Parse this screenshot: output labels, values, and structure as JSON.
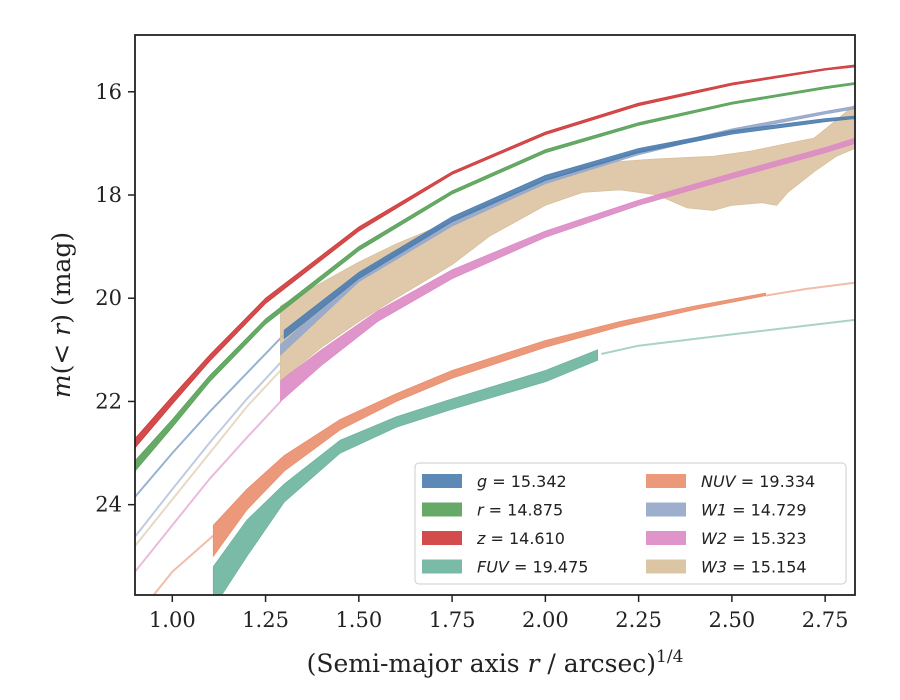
{
  "chart_data": {
    "type": "line",
    "xlabel": "(Semi-major axis r / arcsec)^{1/4}",
    "ylabel": "m(< r) (mag)",
    "xlim": [
      0.9,
      2.83
    ],
    "ylim": [
      25.75,
      14.9
    ],
    "y_inverted": true,
    "grid": false,
    "legend_position": "lower right",
    "x_ticks": [
      "1.00",
      "1.25",
      "1.50",
      "1.75",
      "2.00",
      "2.25",
      "2.50",
      "2.75"
    ],
    "y_ticks": [
      "16",
      "18",
      "20",
      "22",
      "24"
    ],
    "series": [
      {
        "key": "g",
        "label": "g = 15.342",
        "color": "#4f7fb0",
        "extrap": [
          [
            0.9,
            23.85
          ],
          [
            1.0,
            23.0
          ],
          [
            1.1,
            22.2
          ],
          [
            1.2,
            21.45
          ],
          [
            1.3,
            20.7
          ]
        ],
        "measured_upper": [
          [
            1.3,
            20.62
          ],
          [
            1.5,
            19.5
          ],
          [
            1.75,
            18.42
          ],
          [
            2.0,
            17.62
          ],
          [
            2.25,
            17.1
          ],
          [
            2.5,
            16.75
          ],
          [
            2.75,
            16.52
          ],
          [
            2.83,
            16.47
          ]
        ],
        "measured_lower": [
          [
            1.3,
            20.78
          ],
          [
            1.5,
            19.62
          ],
          [
            1.75,
            18.52
          ],
          [
            2.0,
            17.72
          ],
          [
            2.25,
            17.18
          ],
          [
            2.5,
            16.82
          ],
          [
            2.75,
            16.58
          ],
          [
            2.83,
            16.52
          ]
        ]
      },
      {
        "key": "r",
        "label": "r = 14.875",
        "color": "#5aa35a",
        "measured_upper": [
          [
            0.9,
            23.15
          ],
          [
            1.0,
            22.35
          ],
          [
            1.1,
            21.5
          ],
          [
            1.25,
            20.4
          ],
          [
            1.5,
            19.0
          ],
          [
            1.75,
            17.92
          ],
          [
            2.0,
            17.12
          ],
          [
            2.25,
            16.6
          ],
          [
            2.5,
            16.2
          ],
          [
            2.75,
            15.9
          ],
          [
            2.83,
            15.82
          ]
        ],
        "measured_lower": [
          [
            0.9,
            23.35
          ],
          [
            1.0,
            22.5
          ],
          [
            1.1,
            21.62
          ],
          [
            1.25,
            20.5
          ],
          [
            1.5,
            19.08
          ],
          [
            1.75,
            17.98
          ],
          [
            2.0,
            17.18
          ],
          [
            2.25,
            16.65
          ],
          [
            2.5,
            16.24
          ],
          [
            2.75,
            15.94
          ],
          [
            2.83,
            15.86
          ]
        ]
      },
      {
        "key": "z",
        "label": "z = 14.610",
        "color": "#d03c3c",
        "measured_upper": [
          [
            0.9,
            22.72
          ],
          [
            1.0,
            21.9
          ],
          [
            1.1,
            21.1
          ],
          [
            1.25,
            20.0
          ],
          [
            1.5,
            18.62
          ],
          [
            1.75,
            17.55
          ],
          [
            2.0,
            16.78
          ],
          [
            2.25,
            16.22
          ],
          [
            2.5,
            15.83
          ],
          [
            2.75,
            15.55
          ],
          [
            2.83,
            15.48
          ]
        ],
        "measured_lower": [
          [
            0.9,
            22.9
          ],
          [
            1.0,
            22.05
          ],
          [
            1.1,
            21.22
          ],
          [
            1.25,
            20.1
          ],
          [
            1.5,
            18.7
          ],
          [
            1.75,
            17.6
          ],
          [
            2.0,
            16.83
          ],
          [
            2.25,
            16.27
          ],
          [
            2.5,
            15.87
          ],
          [
            2.75,
            15.58
          ],
          [
            2.83,
            15.52
          ]
        ]
      },
      {
        "key": "fuv",
        "label": "FUV = 19.475",
        "color": "#6fb5a0",
        "extrap": [
          [
            2.15,
            21.08
          ],
          [
            2.25,
            20.92
          ],
          [
            2.5,
            20.7
          ],
          [
            2.83,
            20.42
          ]
        ],
        "measured_upper": [
          [
            1.11,
            25.2
          ],
          [
            1.2,
            24.3
          ],
          [
            1.3,
            23.6
          ],
          [
            1.45,
            22.75
          ],
          [
            1.6,
            22.3
          ],
          [
            1.75,
            21.95
          ],
          [
            2.0,
            21.4
          ],
          [
            2.14,
            21.0
          ]
        ],
        "measured_lower": [
          [
            1.11,
            26.0
          ],
          [
            1.2,
            25.0
          ],
          [
            1.3,
            23.95
          ],
          [
            1.45,
            23.0
          ],
          [
            1.6,
            22.5
          ],
          [
            1.75,
            22.15
          ],
          [
            2.0,
            21.62
          ],
          [
            2.14,
            21.2
          ]
        ]
      },
      {
        "key": "nuv",
        "label": "NUV = 19.334",
        "color": "#ea8f6f",
        "extrap": [
          [
            0.9,
            26.2
          ],
          [
            1.0,
            25.3
          ],
          [
            1.11,
            24.6
          ]
        ],
        "extrap_tail": [
          [
            2.59,
            19.95
          ],
          [
            2.7,
            19.82
          ],
          [
            2.83,
            19.7
          ]
        ],
        "measured_upper": [
          [
            1.11,
            24.4
          ],
          [
            1.2,
            23.7
          ],
          [
            1.3,
            23.05
          ],
          [
            1.45,
            22.35
          ],
          [
            1.6,
            21.85
          ],
          [
            1.75,
            21.4
          ],
          [
            2.0,
            20.82
          ],
          [
            2.2,
            20.45
          ],
          [
            2.4,
            20.15
          ],
          [
            2.59,
            19.9
          ]
        ],
        "measured_lower": [
          [
            1.11,
            25.0
          ],
          [
            1.2,
            24.1
          ],
          [
            1.3,
            23.35
          ],
          [
            1.45,
            22.55
          ],
          [
            1.6,
            22.0
          ],
          [
            1.75,
            21.55
          ],
          [
            2.0,
            20.95
          ],
          [
            2.2,
            20.55
          ],
          [
            2.4,
            20.22
          ],
          [
            2.59,
            19.95
          ]
        ]
      },
      {
        "key": "w1",
        "label": "W1 = 14.729",
        "color": "#96a8ca",
        "extrap": [
          [
            0.9,
            24.62
          ],
          [
            1.0,
            23.7
          ],
          [
            1.1,
            22.8
          ],
          [
            1.2,
            21.95
          ],
          [
            1.29,
            21.25
          ]
        ],
        "measured_upper": [
          [
            1.29,
            20.9
          ],
          [
            1.5,
            19.55
          ],
          [
            1.75,
            18.5
          ],
          [
            2.0,
            17.7
          ],
          [
            2.25,
            17.15
          ],
          [
            2.5,
            16.72
          ],
          [
            2.75,
            16.38
          ],
          [
            2.83,
            16.28
          ]
        ],
        "measured_lower": [
          [
            1.29,
            21.1
          ],
          [
            1.5,
            19.68
          ],
          [
            1.75,
            18.6
          ],
          [
            2.0,
            17.78
          ],
          [
            2.25,
            17.22
          ],
          [
            2.5,
            16.78
          ],
          [
            2.75,
            16.43
          ],
          [
            2.83,
            16.33
          ]
        ]
      },
      {
        "key": "w2",
        "label": "W2 = 15.323",
        "color": "#dc8cc6",
        "extrap": [
          [
            0.9,
            25.3
          ],
          [
            1.0,
            24.4
          ],
          [
            1.1,
            23.5
          ],
          [
            1.2,
            22.7
          ],
          [
            1.29,
            22.0
          ]
        ],
        "measured_upper": [
          [
            1.29,
            21.6
          ],
          [
            1.4,
            21.0
          ],
          [
            1.55,
            20.25
          ],
          [
            1.75,
            19.45
          ],
          [
            2.0,
            18.7
          ],
          [
            2.25,
            18.1
          ],
          [
            2.5,
            17.58
          ],
          [
            2.75,
            17.08
          ],
          [
            2.83,
            16.9
          ]
        ],
        "measured_lower": [
          [
            1.29,
            22.0
          ],
          [
            1.4,
            21.3
          ],
          [
            1.55,
            20.45
          ],
          [
            1.75,
            19.62
          ],
          [
            2.0,
            18.82
          ],
          [
            2.25,
            18.2
          ],
          [
            2.5,
            17.68
          ],
          [
            2.75,
            17.18
          ],
          [
            2.83,
            17.0
          ]
        ]
      },
      {
        "key": "w3",
        "label": "W3 = 15.154",
        "color": "#d9c09b",
        "extrap": [
          [
            0.9,
            24.8
          ],
          [
            1.0,
            23.9
          ],
          [
            1.1,
            23.0
          ],
          [
            1.2,
            22.1
          ],
          [
            1.29,
            21.4
          ]
        ],
        "measured_upper": [
          [
            1.29,
            20.15
          ],
          [
            1.4,
            19.7
          ],
          [
            1.5,
            19.3
          ],
          [
            1.6,
            18.95
          ],
          [
            1.75,
            18.5
          ],
          [
            1.85,
            18.15
          ],
          [
            2.0,
            17.75
          ],
          [
            2.1,
            17.45
          ],
          [
            2.2,
            17.35
          ],
          [
            2.3,
            17.3
          ],
          [
            2.45,
            17.25
          ],
          [
            2.55,
            17.15
          ],
          [
            2.65,
            17.0
          ],
          [
            2.72,
            16.9
          ],
          [
            2.78,
            16.55
          ],
          [
            2.83,
            16.25
          ]
        ],
        "measured_lower": [
          [
            1.29,
            21.6
          ],
          [
            1.4,
            20.95
          ],
          [
            1.5,
            20.45
          ],
          [
            1.6,
            20.0
          ],
          [
            1.75,
            19.35
          ],
          [
            1.85,
            18.8
          ],
          [
            2.0,
            18.2
          ],
          [
            2.1,
            17.95
          ],
          [
            2.2,
            17.9
          ],
          [
            2.3,
            18.0
          ],
          [
            2.38,
            18.25
          ],
          [
            2.45,
            18.3
          ],
          [
            2.5,
            18.2
          ],
          [
            2.58,
            18.15
          ],
          [
            2.62,
            18.2
          ],
          [
            2.65,
            17.95
          ],
          [
            2.72,
            17.55
          ],
          [
            2.78,
            17.25
          ],
          [
            2.83,
            17.1
          ]
        ]
      }
    ]
  },
  "legend": [
    {
      "key": "g",
      "var": "g",
      "value": "= 15.342",
      "color": "#4f7fb0"
    },
    {
      "key": "r",
      "var": "r",
      "value": "= 14.875",
      "color": "#5aa35a"
    },
    {
      "key": "z",
      "var": "z",
      "value": "= 14.610",
      "color": "#d03c3c"
    },
    {
      "key": "fuv",
      "var": "FUV",
      "value": "= 19.475",
      "color": "#6fb5a0"
    },
    {
      "key": "nuv",
      "var": "NUV",
      "value": "= 19.334",
      "color": "#ea8f6f"
    },
    {
      "key": "w1",
      "var": "W1",
      "value": "= 14.729",
      "color": "#96a8ca"
    },
    {
      "key": "w2",
      "var": "W2",
      "value": "= 15.323",
      "color": "#dc8cc6"
    },
    {
      "key": "w3",
      "var": "W3",
      "value": "= 15.154",
      "color": "#d9c09b"
    }
  ]
}
